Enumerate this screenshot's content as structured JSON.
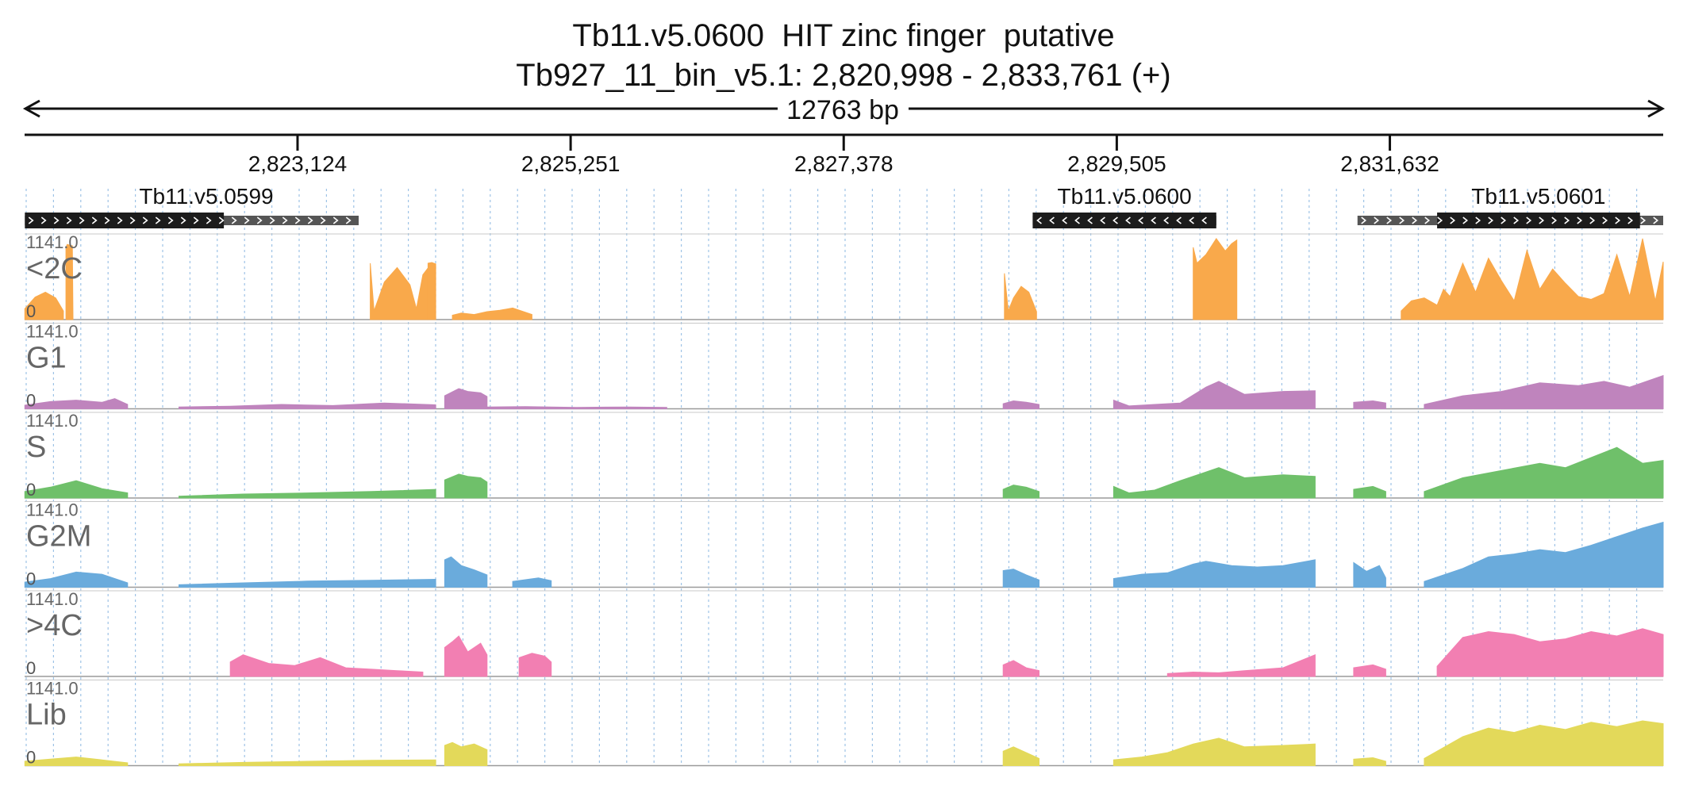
{
  "header": {
    "title": "Tb11.v5.0600  HIT zinc finger  putative",
    "locus": "Tb927_11_bin_v5.1: 2,820,998 - 2,833,761 (+)",
    "span_label": "12763 bp"
  },
  "ruler": {
    "start": 2820998,
    "end": 2833761,
    "ticks": [
      {
        "pos": 2823124,
        "label": "2,823,124"
      },
      {
        "pos": 2825251,
        "label": "2,825,251"
      },
      {
        "pos": 2827378,
        "label": "2,827,378"
      },
      {
        "pos": 2829505,
        "label": "2,829,505"
      },
      {
        "pos": 2831632,
        "label": "2,831,632"
      }
    ]
  },
  "genes": [
    {
      "name": "Tb11.v5.0599",
      "strand": "+",
      "utr_start": 2821000,
      "utr_end": 2823600,
      "cds_start": 2821000,
      "cds_end": 2822550
    },
    {
      "name": "Tb11.v5.0600",
      "strand": "-",
      "utr_start": 2828850,
      "utr_end": 2830280,
      "cds_start": 2828850,
      "cds_end": 2830280
    },
    {
      "name": "Tb11.v5.0601",
      "strand": "+",
      "utr_start": 2831380,
      "utr_end": 2833761,
      "cds_start": 2832000,
      "cds_end": 2833580
    }
  ],
  "colors": {
    "<2C": "#f9a94b",
    "G1": "#bf84bd",
    "S": "#6fc06a",
    "G2M": "#6aabdc",
    ">4C": "#f27fb2",
    "Lib": "#e3d95a",
    "gene_cds": "#1c1c1c",
    "gene_utr": "#555555"
  },
  "chart_data": {
    "type": "area",
    "x_range": [
      2820998,
      2833761
    ],
    "ymax_label": "1141.0",
    "ymin_label": "0",
    "tracks": [
      {
        "name": "<2C",
        "segments": [
          {
            "x": [
              2821000,
              2821080,
              2821160,
              2821240,
              2821300
            ],
            "y": [
              150,
              310,
              380,
              300,
              120
            ]
          },
          {
            "x": [
              2821320,
              2821330,
              2821370,
              2821375
            ],
            "y": [
              1000,
              1040,
              1020,
              0
            ]
          },
          {
            "x": [
              2823690,
              2823720,
              2823800,
              2823900,
              2824000,
              2824050,
              2824100,
              2824160,
              2824190
            ],
            "y": [
              780,
              120,
              520,
              720,
              480,
              150,
              620,
              760,
              760
            ]
          },
          {
            "x": [
              2824140,
              2824170,
              2824200
            ],
            "y": [
              780,
              790,
              770
            ]
          },
          {
            "x": [
              2824330,
              2824400,
              2824500,
              2824600,
              2824700,
              2824800,
              2824950
            ],
            "y": [
              60,
              90,
              70,
              110,
              130,
              160,
              70
            ]
          },
          {
            "x": [
              2828630,
              2828660,
              2828700,
              2828760,
              2828820,
              2828880
            ],
            "y": [
              640,
              120,
              300,
              460,
              380,
              110
            ]
          },
          {
            "x": [
              2830100,
              2830130,
              2830200,
              2830280,
              2830350,
              2830400,
              2830440
            ],
            "y": [
              1000,
              780,
              900,
              1120,
              950,
              1050,
              1100
            ]
          },
          {
            "x": [
              2831720,
              2831800,
              2831900,
              2832000,
              2832050,
              2832100,
              2832200,
              2832300,
              2832400,
              2832500,
              2832600,
              2832700,
              2832800,
              2832900,
              2833000,
              2833100,
              2833200,
              2833300,
              2833400,
              2833500,
              2833600,
              2833700,
              2833761
            ],
            "y": [
              120,
              260,
              300,
              200,
              420,
              320,
              780,
              380,
              850,
              540,
              260,
              960,
              420,
              700,
              500,
              320,
              280,
              360,
              900,
              320,
              1120,
              260,
              800
            ]
          }
        ]
      },
      {
        "name": "G1",
        "segments": [
          {
            "x": [
              2821000,
              2821200,
              2821400,
              2821600,
              2821700,
              2821800
            ],
            "y": [
              50,
              100,
              120,
              90,
              140,
              60
            ]
          },
          {
            "x": [
              2822200,
              2822600,
              2823000,
              2823400,
              2823800,
              2824200
            ],
            "y": [
              25,
              35,
              60,
              45,
              80,
              55
            ]
          },
          {
            "x": [
              2824270,
              2824380,
              2824450,
              2824550,
              2824600
            ],
            "y": [
              180,
              280,
              240,
              220,
              170
            ]
          },
          {
            "x": [
              2824600,
              2824900,
              2825300,
              2825700,
              2826000
            ],
            "y": [
              25,
              30,
              20,
              25,
              20
            ]
          },
          {
            "x": [
              2828620,
              2828700,
              2828800,
              2828900
            ],
            "y": [
              70,
              110,
              90,
              60
            ]
          },
          {
            "x": [
              2829480,
              2829600,
              2829800,
              2830000,
              2830200,
              2830300,
              2830500,
              2830800,
              2831050
            ],
            "y": [
              120,
              40,
              60,
              80,
              300,
              380,
              200,
              240,
              250
            ]
          },
          {
            "x": [
              2831350,
              2831500,
              2831600
            ],
            "y": [
              90,
              110,
              80
            ]
          },
          {
            "x": [
              2831900,
              2832200,
              2832500,
              2832800,
              2833100,
              2833300,
              2833500,
              2833761
            ],
            "y": [
              60,
              180,
              240,
              360,
              320,
              380,
              300,
              460
            ]
          }
        ]
      },
      {
        "name": "S",
        "segments": [
          {
            "x": [
              2821000,
              2821200,
              2821400,
              2821600,
              2821800
            ],
            "y": [
              90,
              150,
              240,
              130,
              70
            ]
          },
          {
            "x": [
              2822200,
              2822700,
              2823200,
              2823700,
              2824200
            ],
            "y": [
              25,
              55,
              70,
              90,
              120
            ]
          },
          {
            "x": [
              2824270,
              2824380,
              2824450,
              2824550,
              2824600
            ],
            "y": [
              250,
              330,
              300,
              280,
              220
            ]
          },
          {
            "x": [
              2828620,
              2828700,
              2828800,
              2828900
            ],
            "y": [
              120,
              180,
              150,
              90
            ]
          },
          {
            "x": [
              2829480,
              2829600,
              2829800,
              2830000,
              2830200,
              2830300,
              2830500,
              2830800,
              2831050
            ],
            "y": [
              160,
              70,
              110,
              240,
              360,
              420,
              280,
              320,
              300
            ]
          },
          {
            "x": [
              2831350,
              2831500,
              2831600
            ],
            "y": [
              120,
              160,
              90
            ]
          },
          {
            "x": [
              2831900,
              2832200,
              2832500,
              2832800,
              2833000,
              2833200,
              2833400,
              2833600,
              2833761
            ],
            "y": [
              90,
              280,
              380,
              480,
              420,
              560,
              700,
              480,
              520
            ]
          }
        ]
      },
      {
        "name": "G2M",
        "segments": [
          {
            "x": [
              2821000,
              2821200,
              2821400,
              2821600,
              2821800
            ],
            "y": [
              70,
              120,
              210,
              180,
              60
            ]
          },
          {
            "x": [
              2822200,
              2822700,
              2823200,
              2823700,
              2824200
            ],
            "y": [
              35,
              60,
              85,
              95,
              110
            ]
          },
          {
            "x": [
              2824270,
              2824320,
              2824400,
              2824500,
              2824600
            ],
            "y": [
              380,
              420,
              300,
              240,
              170
            ]
          },
          {
            "x": [
              2824800,
              2825000,
              2825100
            ],
            "y": [
              80,
              130,
              90
            ]
          },
          {
            "x": [
              2828620,
              2828700,
              2828800,
              2828900
            ],
            "y": [
              230,
              250,
              170,
              100
            ]
          },
          {
            "x": [
              2829480,
              2829700,
              2829900,
              2830100,
              2830200,
              2830400,
              2830600,
              2830800,
              2831050
            ],
            "y": [
              120,
              180,
              200,
              320,
              360,
              300,
              280,
              300,
              380
            ]
          },
          {
            "x": [
              2831350,
              2831450,
              2831550,
              2831600
            ],
            "y": [
              340,
              220,
              300,
              130
            ]
          },
          {
            "x": [
              2831900,
              2832200,
              2832400,
              2832600,
              2832800,
              2833000,
              2833200,
              2833400,
              2833600,
              2833761
            ],
            "y": [
              80,
              260,
              420,
              460,
              520,
              480,
              580,
              700,
              820,
              900
            ]
          }
        ]
      },
      {
        "name": ">4C",
        "segments": [
          {
            "x": [
              2822600,
              2822700,
              2822900,
              2823100,
              2823300,
              2823500,
              2823700,
              2823900,
              2824100
            ],
            "y": [
              200,
              300,
              180,
              150,
              260,
              120,
              100,
              80,
              60
            ]
          },
          {
            "x": [
              2824270,
              2824330,
              2824380,
              2824450,
              2824550,
              2824600
            ],
            "y": [
              400,
              480,
              560,
              340,
              460,
              300
            ]
          },
          {
            "x": [
              2824850,
              2824950,
              2825050,
              2825100
            ],
            "y": [
              260,
              320,
              280,
              200
            ]
          },
          {
            "x": [
              2828620,
              2828700,
              2828800,
              2828900
            ],
            "y": [
              160,
              220,
              120,
              80
            ]
          },
          {
            "x": [
              2829900,
              2830100,
              2830300,
              2830500,
              2830800,
              2831050
            ],
            "y": [
              40,
              60,
              50,
              80,
              120,
              300
            ]
          },
          {
            "x": [
              2831350,
              2831500,
              2831600
            ],
            "y": [
              120,
              160,
              100
            ]
          },
          {
            "x": [
              2832000,
              2832200,
              2832400,
              2832600,
              2832800,
              2833000,
              2833200,
              2833400,
              2833600,
              2833761
            ],
            "y": [
              140,
              540,
              620,
              580,
              480,
              520,
              620,
              560,
              660,
              580
            ]
          }
        ]
      },
      {
        "name": "Lib",
        "segments": [
          {
            "x": [
              2821000,
              2821200,
              2821400,
              2821600,
              2821800
            ],
            "y": [
              60,
              90,
              120,
              80,
              40
            ]
          },
          {
            "x": [
              2822200,
              2822700,
              2823200,
              2823700,
              2824200
            ],
            "y": [
              25,
              45,
              60,
              75,
              80
            ]
          },
          {
            "x": [
              2824270,
              2824330,
              2824400,
              2824500,
              2824600
            ],
            "y": [
              280,
              320,
              260,
              300,
              220
            ]
          },
          {
            "x": [
              2828620,
              2828700,
              2828800,
              2828900
            ],
            "y": [
              200,
              260,
              180,
              100
            ]
          },
          {
            "x": [
              2829480,
              2829700,
              2829900,
              2830100,
              2830300,
              2830500,
              2830800,
              2831050
            ],
            "y": [
              80,
              120,
              180,
              300,
              380,
              260,
              280,
              300
            ]
          },
          {
            "x": [
              2831350,
              2831500,
              2831600
            ],
            "y": [
              90,
              110,
              60
            ]
          },
          {
            "x": [
              2831900,
              2832200,
              2832400,
              2832600,
              2832800,
              2833000,
              2833200,
              2833400,
              2833600,
              2833761
            ],
            "y": [
              100,
              400,
              520,
              460,
              560,
              500,
              600,
              540,
              620,
              580
            ]
          }
        ]
      }
    ]
  }
}
